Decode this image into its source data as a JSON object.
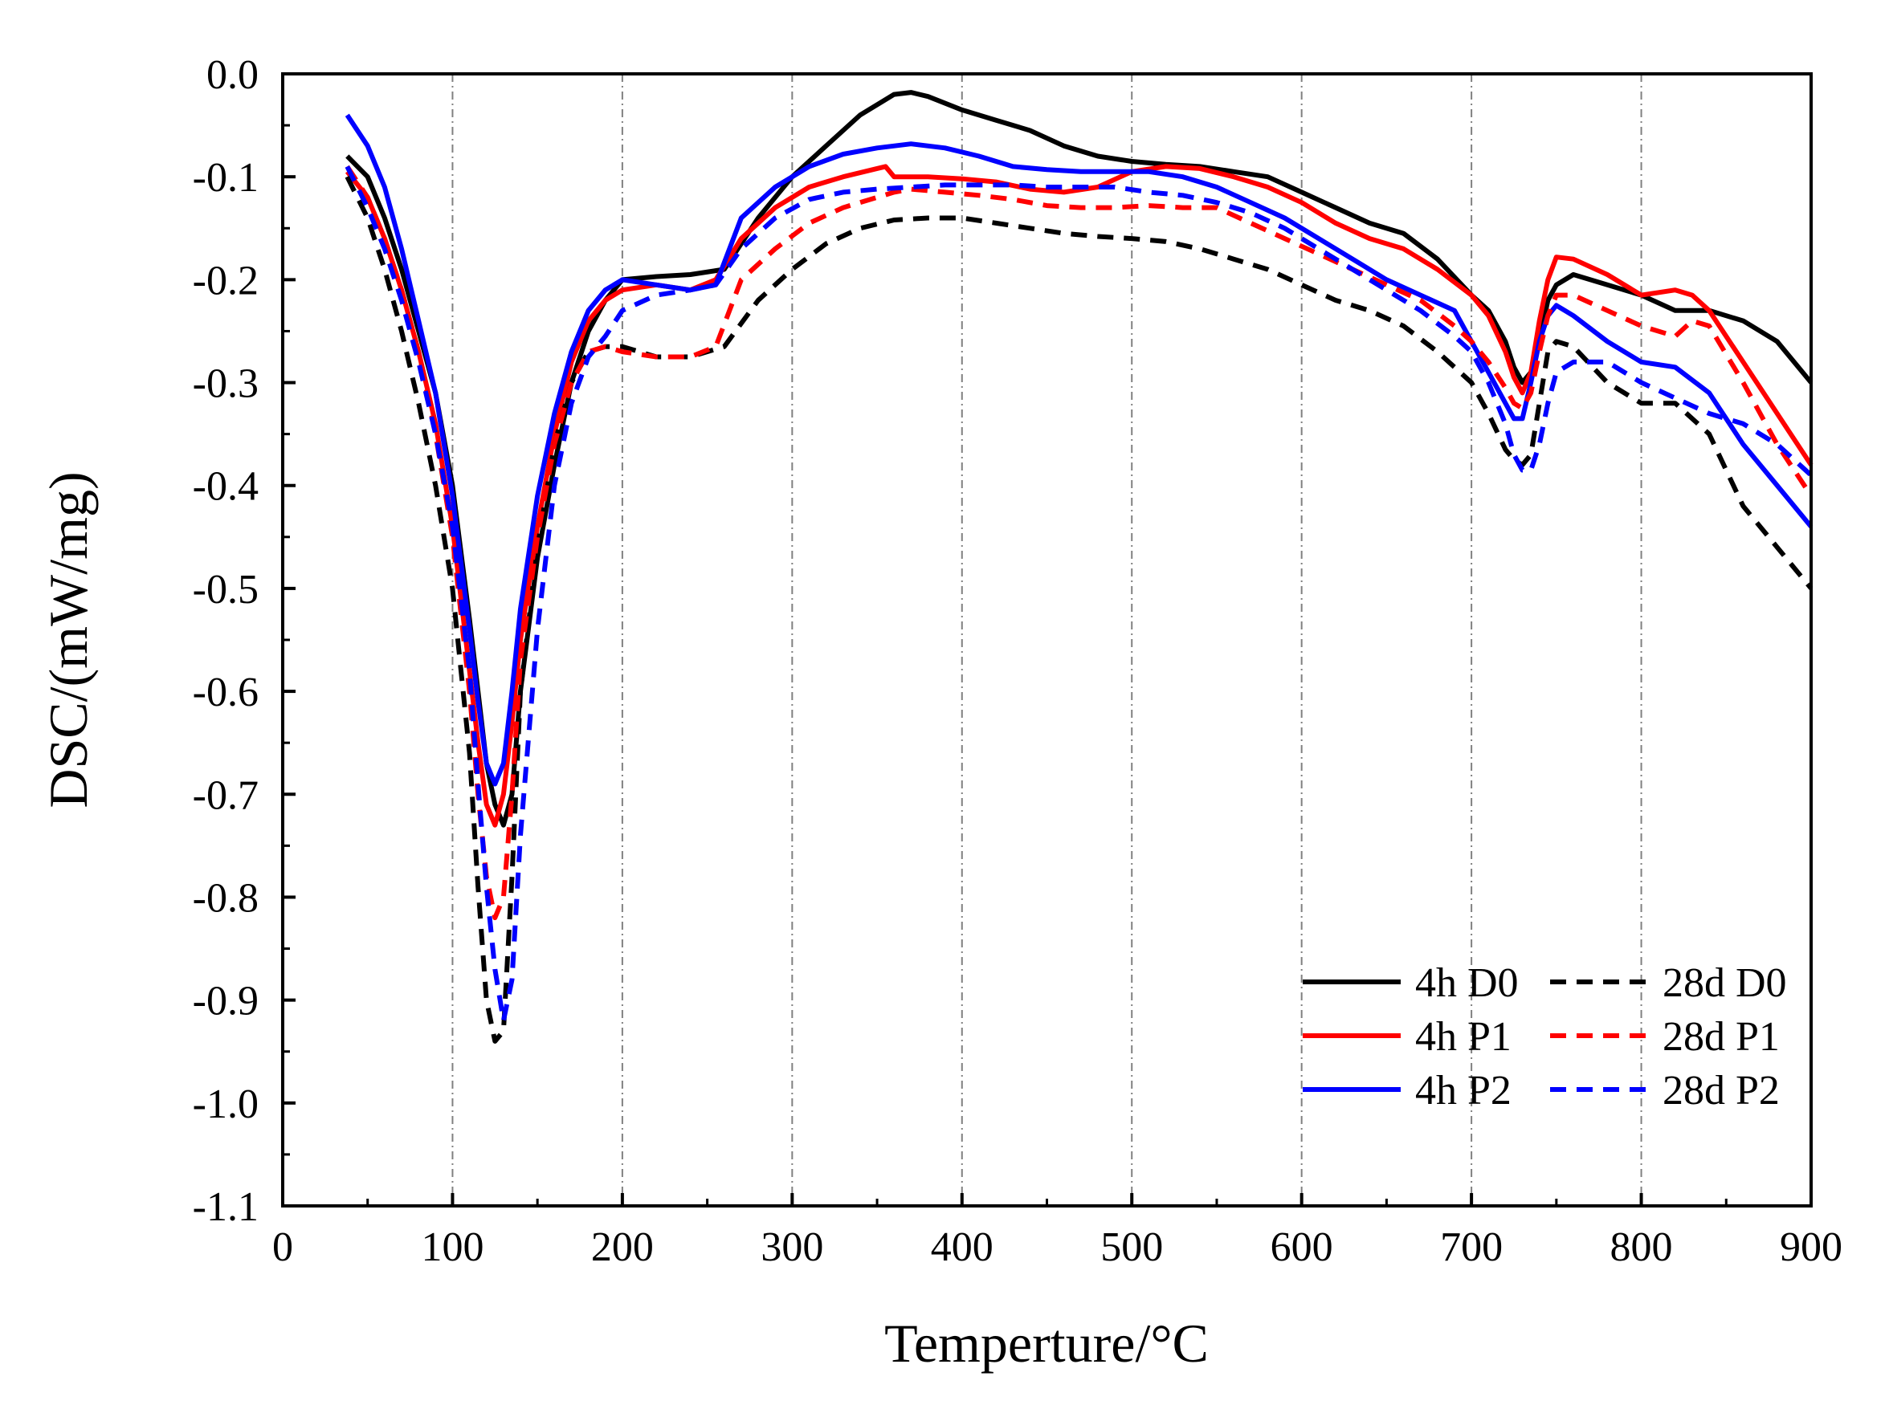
{
  "chart_data": {
    "type": "line",
    "title": "",
    "xlabel": "Temperture/°C",
    "ylabel": "DSC/(mW/mg)",
    "xlim": [
      0,
      900
    ],
    "ylim": [
      -1.1,
      0.0
    ],
    "xticks": [
      0,
      100,
      200,
      300,
      400,
      500,
      600,
      700,
      800,
      900
    ],
    "yticks": [
      0.0,
      -0.1,
      -0.2,
      -0.3,
      -0.4,
      -0.5,
      -0.6,
      -0.7,
      -0.8,
      -0.9,
      -1.0,
      -1.1
    ],
    "grid": "vertical dash-dot",
    "legend_position": "bottom-right",
    "series": [
      {
        "name": "4h D0",
        "color": "#000000",
        "dash": "solid",
        "x": [
          38,
          50,
          60,
          70,
          80,
          90,
          100,
          110,
          115,
          120,
          125,
          130,
          135,
          140,
          150,
          160,
          170,
          180,
          190,
          200,
          220,
          240,
          260,
          280,
          300,
          320,
          340,
          360,
          370,
          380,
          400,
          420,
          440,
          460,
          480,
          500,
          520,
          540,
          560,
          580,
          600,
          620,
          640,
          660,
          680,
          700,
          710,
          720,
          725,
          730,
          735,
          740,
          745,
          750,
          760,
          780,
          800,
          820,
          840,
          860,
          880,
          900
        ],
        "y": [
          -0.08,
          -0.1,
          -0.14,
          -0.19,
          -0.25,
          -0.31,
          -0.4,
          -0.53,
          -0.6,
          -0.67,
          -0.71,
          -0.73,
          -0.7,
          -0.6,
          -0.47,
          -0.38,
          -0.3,
          -0.25,
          -0.22,
          -0.2,
          -0.197,
          -0.195,
          -0.19,
          -0.14,
          -0.1,
          -0.07,
          -0.04,
          -0.02,
          -0.018,
          -0.022,
          -0.035,
          -0.045,
          -0.055,
          -0.07,
          -0.08,
          -0.085,
          -0.088,
          -0.09,
          -0.095,
          -0.1,
          -0.115,
          -0.13,
          -0.145,
          -0.155,
          -0.18,
          -0.215,
          -0.23,
          -0.26,
          -0.285,
          -0.3,
          -0.29,
          -0.26,
          -0.22,
          -0.205,
          -0.195,
          -0.205,
          -0.215,
          -0.23,
          -0.23,
          -0.24,
          -0.26,
          -0.3
        ]
      },
      {
        "name": "4h P1",
        "color": "#ff0000",
        "dash": "solid",
        "x": [
          38,
          50,
          60,
          70,
          80,
          90,
          100,
          110,
          115,
          120,
          125,
          130,
          135,
          140,
          150,
          160,
          170,
          180,
          190,
          200,
          220,
          240,
          255,
          270,
          290,
          310,
          330,
          350,
          355,
          360,
          380,
          400,
          420,
          440,
          460,
          480,
          500,
          520,
          540,
          560,
          580,
          600,
          620,
          640,
          660,
          680,
          700,
          710,
          720,
          725,
          730,
          735,
          740,
          745,
          750,
          760,
          780,
          800,
          820,
          830,
          840,
          860,
          880,
          900
        ],
        "y": [
          -0.095,
          -0.12,
          -0.16,
          -0.21,
          -0.27,
          -0.34,
          -0.44,
          -0.58,
          -0.65,
          -0.71,
          -0.73,
          -0.7,
          -0.63,
          -0.55,
          -0.44,
          -0.35,
          -0.28,
          -0.24,
          -0.22,
          -0.21,
          -0.205,
          -0.21,
          -0.2,
          -0.16,
          -0.13,
          -0.11,
          -0.1,
          -0.092,
          -0.09,
          -0.1,
          -0.1,
          -0.102,
          -0.105,
          -0.112,
          -0.115,
          -0.11,
          -0.095,
          -0.09,
          -0.092,
          -0.1,
          -0.11,
          -0.125,
          -0.145,
          -0.16,
          -0.17,
          -0.19,
          -0.215,
          -0.235,
          -0.27,
          -0.295,
          -0.31,
          -0.29,
          -0.24,
          -0.2,
          -0.178,
          -0.18,
          -0.195,
          -0.215,
          -0.21,
          -0.215,
          -0.23,
          -0.28,
          -0.33,
          -0.38
        ]
      },
      {
        "name": "4h P2",
        "color": "#0000ff",
        "dash": "solid",
        "x": [
          38,
          50,
          60,
          70,
          80,
          90,
          100,
          110,
          115,
          120,
          125,
          130,
          135,
          140,
          150,
          160,
          170,
          180,
          190,
          200,
          220,
          240,
          255,
          270,
          290,
          310,
          330,
          350,
          370,
          390,
          410,
          430,
          450,
          470,
          490,
          510,
          530,
          550,
          570,
          590,
          610,
          630,
          650,
          670,
          690,
          700,
          710,
          720,
          725,
          730,
          735,
          740,
          745,
          750,
          760,
          780,
          800,
          820,
          840,
          860,
          880,
          900
        ],
        "y": [
          -0.04,
          -0.07,
          -0.11,
          -0.17,
          -0.24,
          -0.31,
          -0.41,
          -0.54,
          -0.61,
          -0.67,
          -0.69,
          -0.67,
          -0.6,
          -0.52,
          -0.41,
          -0.33,
          -0.27,
          -0.23,
          -0.21,
          -0.2,
          -0.205,
          -0.21,
          -0.205,
          -0.14,
          -0.11,
          -0.09,
          -0.078,
          -0.072,
          -0.068,
          -0.072,
          -0.08,
          -0.09,
          -0.093,
          -0.095,
          -0.095,
          -0.095,
          -0.1,
          -0.11,
          -0.125,
          -0.14,
          -0.16,
          -0.18,
          -0.2,
          -0.215,
          -0.23,
          -0.26,
          -0.29,
          -0.32,
          -0.335,
          -0.335,
          -0.3,
          -0.26,
          -0.235,
          -0.225,
          -0.235,
          -0.26,
          -0.28,
          -0.285,
          -0.31,
          -0.36,
          -0.4,
          -0.44
        ]
      },
      {
        "name": "28d D0",
        "color": "#000000",
        "dash": "dashed",
        "x": [
          38,
          50,
          60,
          70,
          80,
          90,
          100,
          110,
          115,
          120,
          125,
          130,
          135,
          140,
          150,
          160,
          170,
          180,
          190,
          200,
          220,
          240,
          260,
          280,
          300,
          320,
          340,
          360,
          380,
          400,
          420,
          440,
          460,
          480,
          500,
          520,
          540,
          560,
          580,
          600,
          620,
          640,
          660,
          680,
          700,
          710,
          720,
          725,
          730,
          735,
          740,
          745,
          750,
          760,
          780,
          800,
          820,
          840,
          860,
          880,
          900
        ],
        "y": [
          -0.1,
          -0.14,
          -0.19,
          -0.25,
          -0.32,
          -0.4,
          -0.5,
          -0.66,
          -0.79,
          -0.9,
          -0.94,
          -0.93,
          -0.78,
          -0.6,
          -0.46,
          -0.36,
          -0.3,
          -0.27,
          -0.265,
          -0.265,
          -0.275,
          -0.275,
          -0.265,
          -0.22,
          -0.19,
          -0.165,
          -0.15,
          -0.142,
          -0.14,
          -0.14,
          -0.145,
          -0.15,
          -0.155,
          -0.158,
          -0.16,
          -0.163,
          -0.17,
          -0.18,
          -0.19,
          -0.205,
          -0.22,
          -0.23,
          -0.245,
          -0.27,
          -0.3,
          -0.33,
          -0.365,
          -0.375,
          -0.38,
          -0.37,
          -0.32,
          -0.27,
          -0.26,
          -0.265,
          -0.3,
          -0.32,
          -0.32,
          -0.35,
          -0.42,
          -0.46,
          -0.5
        ]
      },
      {
        "name": "28d P1",
        "color": "#ff0000",
        "dash": "dashed",
        "x": [
          38,
          50,
          60,
          70,
          80,
          90,
          100,
          110,
          115,
          120,
          125,
          130,
          135,
          140,
          150,
          160,
          170,
          180,
          190,
          200,
          220,
          240,
          255,
          270,
          290,
          310,
          330,
          350,
          360,
          370,
          390,
          410,
          430,
          450,
          470,
          490,
          510,
          530,
          550,
          570,
          590,
          610,
          630,
          650,
          670,
          690,
          700,
          710,
          720,
          725,
          730,
          735,
          740,
          745,
          750,
          760,
          780,
          800,
          820,
          830,
          840,
          860,
          880,
          900
        ],
        "y": [
          -0.09,
          -0.12,
          -0.16,
          -0.21,
          -0.27,
          -0.35,
          -0.45,
          -0.6,
          -0.7,
          -0.78,
          -0.82,
          -0.8,
          -0.7,
          -0.57,
          -0.45,
          -0.36,
          -0.3,
          -0.27,
          -0.265,
          -0.27,
          -0.275,
          -0.275,
          -0.265,
          -0.2,
          -0.17,
          -0.145,
          -0.13,
          -0.12,
          -0.115,
          -0.112,
          -0.115,
          -0.118,
          -0.122,
          -0.128,
          -0.13,
          -0.13,
          -0.128,
          -0.13,
          -0.13,
          -0.145,
          -0.16,
          -0.175,
          -0.19,
          -0.205,
          -0.22,
          -0.245,
          -0.26,
          -0.28,
          -0.305,
          -0.32,
          -0.325,
          -0.31,
          -0.27,
          -0.235,
          -0.215,
          -0.215,
          -0.23,
          -0.245,
          -0.255,
          -0.24,
          -0.245,
          -0.3,
          -0.36,
          -0.41
        ]
      },
      {
        "name": "28d P2",
        "color": "#0000ff",
        "dash": "dashed",
        "x": [
          38,
          50,
          60,
          70,
          80,
          90,
          100,
          110,
          115,
          120,
          125,
          130,
          135,
          140,
          150,
          160,
          170,
          180,
          190,
          200,
          220,
          240,
          255,
          270,
          290,
          310,
          330,
          350,
          370,
          390,
          410,
          430,
          450,
          470,
          490,
          510,
          530,
          550,
          570,
          590,
          610,
          630,
          650,
          670,
          690,
          700,
          710,
          720,
          725,
          730,
          735,
          740,
          745,
          750,
          760,
          780,
          800,
          820,
          840,
          860,
          880,
          900
        ],
        "y": [
          -0.09,
          -0.13,
          -0.17,
          -0.22,
          -0.28,
          -0.35,
          -0.44,
          -0.58,
          -0.69,
          -0.79,
          -0.87,
          -0.92,
          -0.88,
          -0.74,
          -0.54,
          -0.4,
          -0.32,
          -0.275,
          -0.255,
          -0.23,
          -0.215,
          -0.21,
          -0.205,
          -0.17,
          -0.14,
          -0.122,
          -0.115,
          -0.112,
          -0.11,
          -0.108,
          -0.108,
          -0.108,
          -0.11,
          -0.11,
          -0.11,
          -0.115,
          -0.118,
          -0.125,
          -0.135,
          -0.15,
          -0.17,
          -0.19,
          -0.21,
          -0.23,
          -0.255,
          -0.27,
          -0.3,
          -0.34,
          -0.37,
          -0.385,
          -0.385,
          -0.36,
          -0.32,
          -0.29,
          -0.28,
          -0.28,
          -0.3,
          -0.315,
          -0.33,
          -0.34,
          -0.36,
          -0.39
        ]
      }
    ]
  }
}
